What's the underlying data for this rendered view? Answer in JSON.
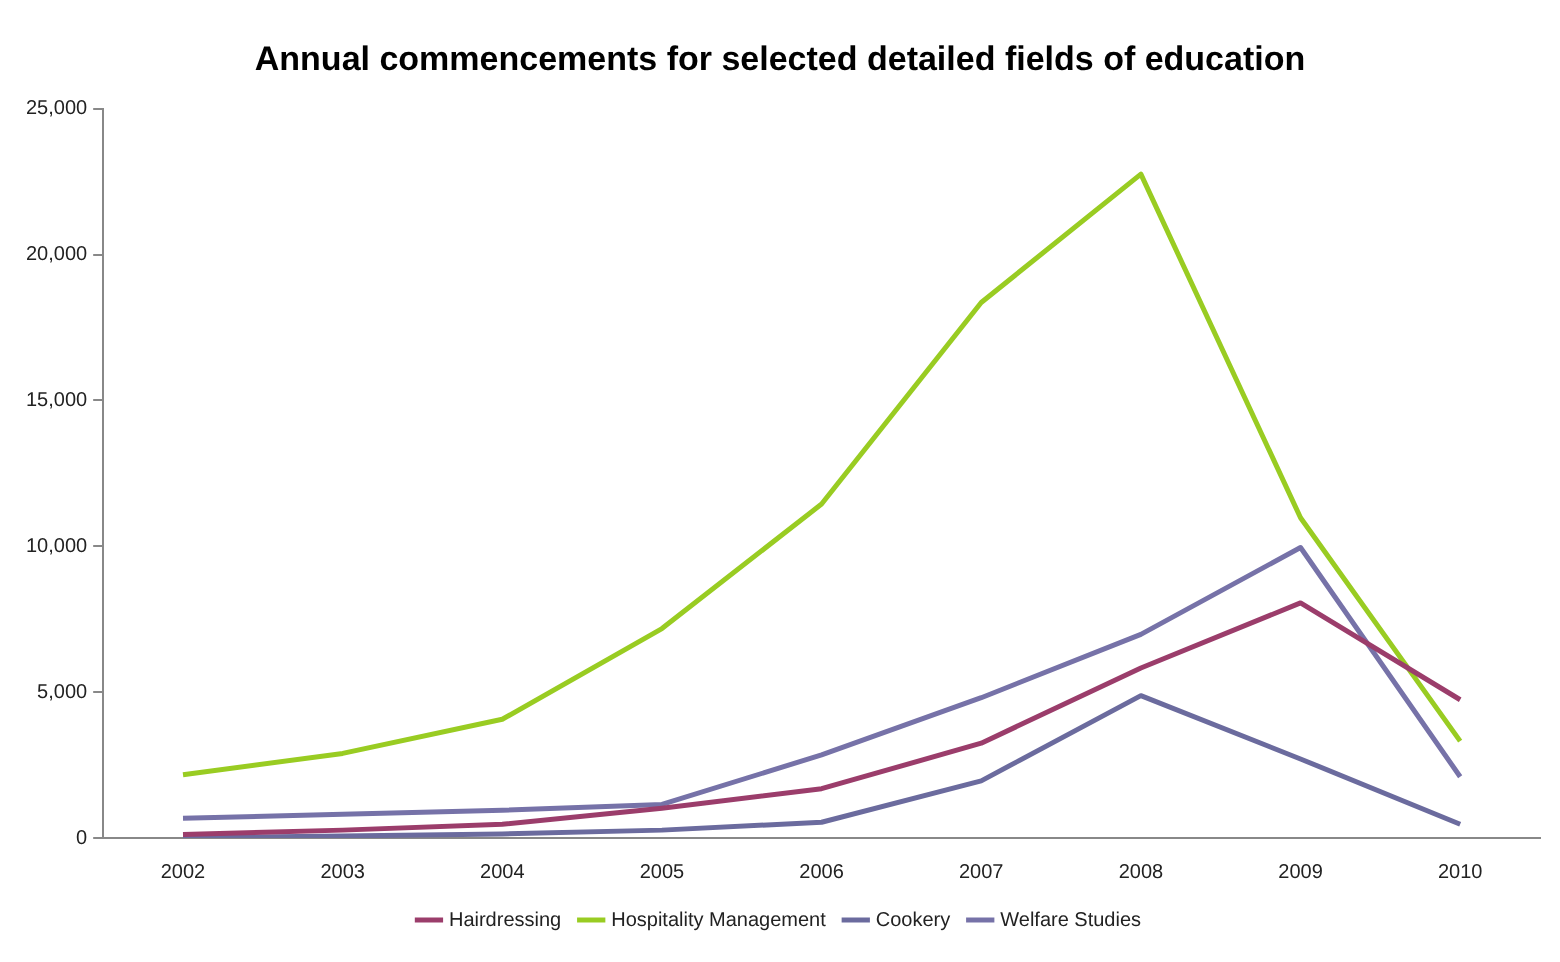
{
  "chart_data": {
    "type": "line",
    "title": "Annual commencements for selected detailed fields of education",
    "categories": [
      "2002",
      "2003",
      "2004",
      "2005",
      "2006",
      "2007",
      "2008",
      "2009",
      "2010"
    ],
    "series": [
      {
        "name": "Hairdressing",
        "color": "#9b3d6b",
        "values": [
          120,
          270,
          470,
          1020,
          1690,
          3250,
          5830,
          8060,
          4740
        ]
      },
      {
        "name": "Hospitality Management",
        "color": "#99cc22",
        "values": [
          2170,
          2900,
          4070,
          7180,
          11450,
          18360,
          22760,
          10980,
          3320
        ]
      },
      {
        "name": "Cookery",
        "color": "#6b6b9e",
        "values": [
          0,
          70,
          140,
          270,
          540,
          1960,
          4880,
          2710,
          470
        ]
      },
      {
        "name": "Welfare Studies",
        "color": "#7672a8",
        "values": [
          680,
          810,
          950,
          1150,
          2850,
          4810,
          6980,
          9960,
          2100
        ]
      }
    ],
    "ylim": [
      0,
      25000
    ],
    "yticks": [
      {
        "value": 0,
        "label": "0"
      },
      {
        "value": 5000,
        "label": "5,000"
      },
      {
        "value": 10000,
        "label": "10,000"
      },
      {
        "value": 15000,
        "label": "15,000"
      },
      {
        "value": 20000,
        "label": "20,000"
      },
      {
        "value": 25000,
        "label": "25,000"
      }
    ],
    "grid": false,
    "legend": "bottom",
    "marker": "none",
    "line_style": "solid"
  }
}
